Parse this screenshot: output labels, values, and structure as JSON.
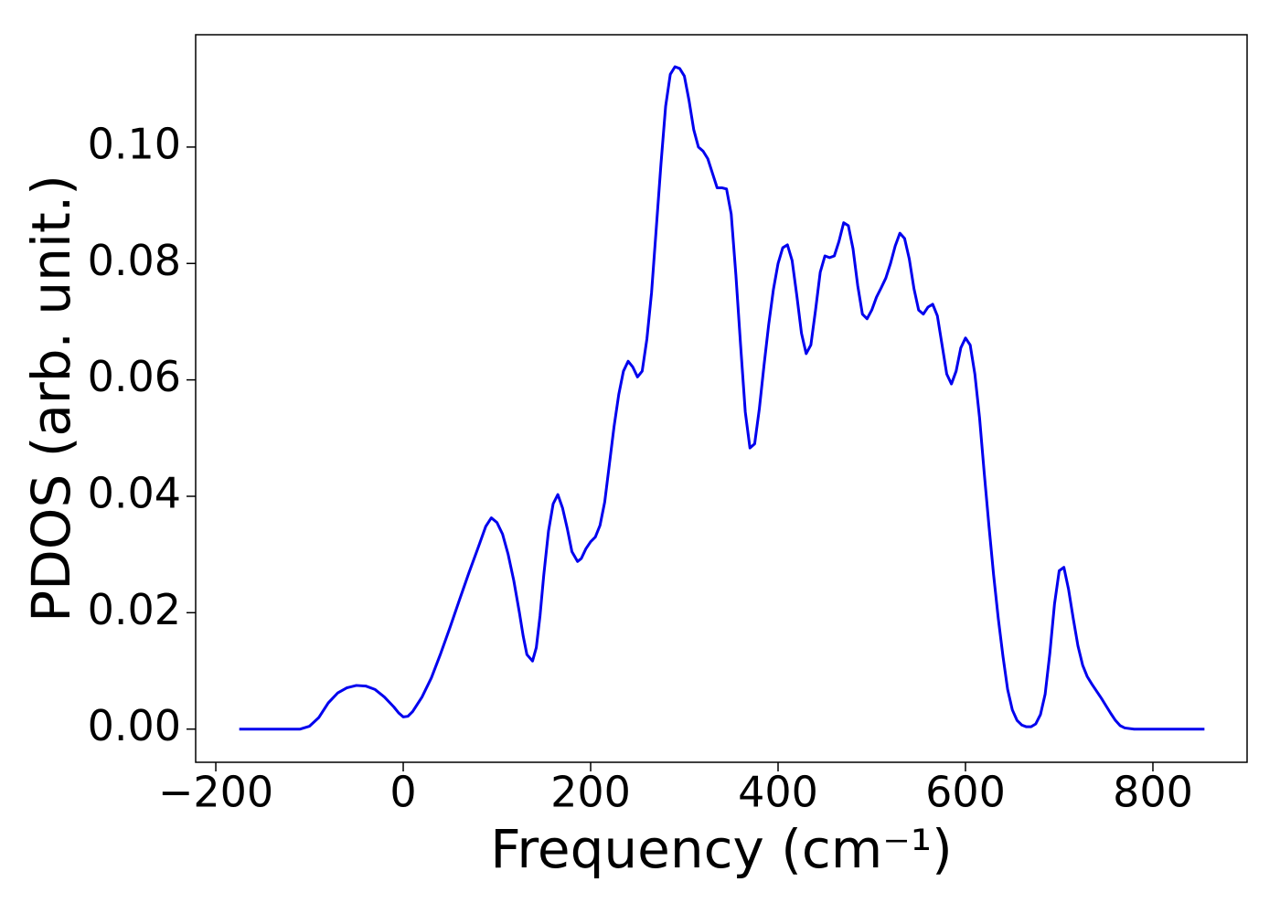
{
  "chart_data": {
    "type": "line",
    "x_label": "Frequency (cm⁻¹)",
    "y_label": "PDOS (arb. unit.)",
    "x": [
      -175,
      -110,
      -100,
      -90,
      -80,
      -70,
      -60,
      -50,
      -40,
      -30,
      -20,
      -10,
      -5,
      0,
      5,
      10,
      20,
      30,
      40,
      50,
      60,
      70,
      80,
      88,
      94,
      100,
      106,
      112,
      118,
      124,
      128,
      132,
      138,
      142,
      146,
      150,
      155,
      160,
      165,
      170,
      175,
      180,
      186,
      190,
      195,
      200,
      205,
      210,
      215,
      220,
      225,
      230,
      235,
      240,
      245,
      250,
      255,
      260,
      265,
      270,
      275,
      280,
      285,
      290,
      295,
      300,
      305,
      310,
      315,
      320,
      325,
      330,
      335,
      340,
      345,
      350,
      355,
      360,
      365,
      370,
      375,
      380,
      385,
      390,
      395,
      400,
      405,
      410,
      415,
      420,
      425,
      430,
      435,
      440,
      445,
      450,
      455,
      460,
      465,
      470,
      475,
      480,
      485,
      490,
      495,
      500,
      505,
      510,
      515,
      520,
      525,
      530,
      535,
      540,
      545,
      550,
      555,
      560,
      565,
      570,
      575,
      580,
      585,
      590,
      595,
      600,
      605,
      610,
      615,
      620,
      625,
      630,
      635,
      640,
      645,
      650,
      655,
      660,
      665,
      670,
      675,
      680,
      685,
      690,
      695,
      700,
      705,
      710,
      715,
      720,
      725,
      730,
      735,
      740,
      745,
      750,
      755,
      760,
      765,
      770,
      780,
      855
    ],
    "series": [
      {
        "name": "PDOS",
        "color": "#0000ee",
        "values": [
          0,
          0,
          0.0005,
          0.002,
          0.0045,
          0.0062,
          0.0071,
          0.0075,
          0.0074,
          0.0068,
          0.0055,
          0.0038,
          0.0028,
          0.0021,
          0.0022,
          0.003,
          0.0055,
          0.0088,
          0.013,
          0.0175,
          0.0222,
          0.0268,
          0.0312,
          0.0348,
          0.0363,
          0.0355,
          0.0335,
          0.03,
          0.0255,
          0.02,
          0.016,
          0.0128,
          0.0117,
          0.014,
          0.0195,
          0.0265,
          0.034,
          0.0387,
          0.0403,
          0.038,
          0.0345,
          0.0305,
          0.0288,
          0.0293,
          0.031,
          0.0322,
          0.033,
          0.035,
          0.039,
          0.0455,
          0.052,
          0.0575,
          0.0615,
          0.0632,
          0.0622,
          0.0605,
          0.0615,
          0.067,
          0.075,
          0.086,
          0.097,
          0.107,
          0.1125,
          0.1138,
          0.1135,
          0.1122,
          0.108,
          0.103,
          0.1,
          0.0993,
          0.098,
          0.0955,
          0.093,
          0.093,
          0.0928,
          0.0885,
          0.078,
          0.066,
          0.0545,
          0.0483,
          0.049,
          0.055,
          0.0625,
          0.0695,
          0.0755,
          0.08,
          0.0827,
          0.0832,
          0.0805,
          0.0745,
          0.068,
          0.0645,
          0.066,
          0.072,
          0.0785,
          0.0813,
          0.081,
          0.0813,
          0.0838,
          0.087,
          0.0865,
          0.0825,
          0.0762,
          0.0713,
          0.0705,
          0.072,
          0.0742,
          0.0758,
          0.0775,
          0.08,
          0.083,
          0.0852,
          0.0843,
          0.0808,
          0.0757,
          0.072,
          0.0713,
          0.0725,
          0.073,
          0.071,
          0.066,
          0.061,
          0.0593,
          0.0615,
          0.0655,
          0.0672,
          0.066,
          0.061,
          0.0535,
          0.044,
          0.035,
          0.0265,
          0.019,
          0.0125,
          0.0068,
          0.0033,
          0.0015,
          0.0007,
          0.0004,
          0.0004,
          0.0009,
          0.0025,
          0.006,
          0.013,
          0.0215,
          0.0272,
          0.0278,
          0.024,
          0.019,
          0.0143,
          0.011,
          0.009,
          0.0077,
          0.0065,
          0.0053,
          0.004,
          0.0027,
          0.0015,
          0.0006,
          0.0002,
          0,
          0
        ]
      }
    ],
    "xlim": [
      -221.5,
      900.5
    ],
    "xticks": [
      {
        "value": -200,
        "label": "−200"
      },
      0,
      200,
      400,
      600,
      800
    ],
    "ylim": [
      -0.0057,
      0.1193
    ],
    "yticks": [
      {
        "value": 0,
        "label": "0.00"
      },
      0.02,
      0.04,
      0.06,
      0.08,
      {
        "value": 0.1,
        "label": "0.10"
      }
    ],
    "grid": false
  }
}
